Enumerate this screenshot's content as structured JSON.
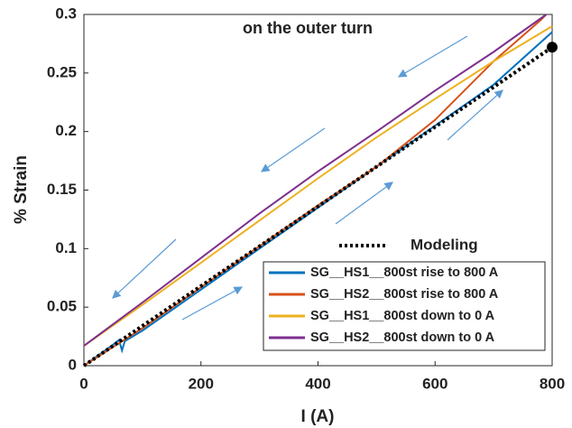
{
  "chart_data": {
    "type": "line",
    "annotation": "on the outer turn",
    "xlabel": "I (A)",
    "ylabel": "% Strain",
    "xlim": [
      0,
      800
    ],
    "ylim": [
      0,
      0.3
    ],
    "xticks": [
      0,
      200,
      400,
      600,
      800
    ],
    "yticks": [
      0,
      0.05,
      0.1,
      0.15,
      0.2,
      0.25,
      0.3
    ],
    "grid": false,
    "legend": "lower right",
    "series": [
      {
        "name": "SG__HS1__800st rise to 800 A",
        "color": "#0072bd",
        "x": [
          0,
          50,
          60,
          65,
          70,
          100,
          200,
          300,
          400,
          500,
          600,
          700,
          800
        ],
        "values": [
          0,
          0.018,
          0.022,
          0.013,
          0.021,
          0.03,
          0.065,
          0.1,
          0.135,
          0.17,
          0.205,
          0.24,
          0.285
        ]
      },
      {
        "name": "SG__HS2__800st rise to 800 A",
        "color": "#d95319",
        "x": [
          0,
          100,
          200,
          300,
          400,
          500,
          600,
          700,
          780,
          790
        ],
        "values": [
          0,
          0.032,
          0.067,
          0.102,
          0.137,
          0.17,
          0.21,
          0.26,
          0.295,
          0.3
        ]
      },
      {
        "name": "SG__HS1__800st down to 0 A",
        "color": "#edb120",
        "x": [
          0,
          100,
          200,
          300,
          400,
          500,
          600,
          700,
          800
        ],
        "values": [
          0.017,
          0.052,
          0.088,
          0.124,
          0.16,
          0.195,
          0.228,
          0.26,
          0.29
        ]
      },
      {
        "name": "SG__HS2__800st down to 0 A",
        "color": "#7e2f8e",
        "x": [
          0,
          100,
          200,
          300,
          400,
          500,
          600,
          700,
          790
        ],
        "values": [
          0.017,
          0.054,
          0.092,
          0.13,
          0.166,
          0.2,
          0.235,
          0.268,
          0.3
        ]
      },
      {
        "name": "Modeling",
        "color": "#000000",
        "style": "dotted",
        "end_marker": true,
        "x": [
          0,
          800
        ],
        "values": [
          0,
          0.272
        ]
      }
    ]
  }
}
